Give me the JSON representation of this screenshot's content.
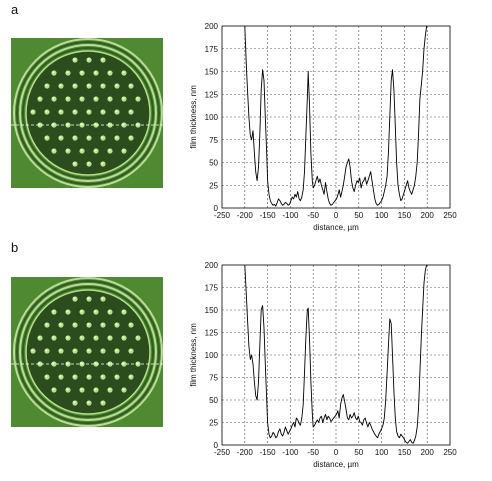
{
  "panels": [
    {
      "label": "a"
    },
    {
      "label": "b"
    }
  ],
  "colors": {
    "micro_bg": "#4f8a32",
    "micro_dark": "#2b4d1e",
    "micro_light": "#b4e08a",
    "micro_ring": "#d6f0b0",
    "line": "#000000",
    "grid": "#555555"
  },
  "chart_data": [
    {
      "type": "line",
      "xlabel": "distance, µm",
      "ylabel": "film thickness, nm",
      "xlim": [
        -250,
        250
      ],
      "ylim": [
        0,
        200
      ],
      "xticks": [
        "-250",
        "-200",
        "-150",
        "-100",
        "-50",
        "0",
        "50",
        "100",
        "150",
        "200",
        "250"
      ],
      "yticks": [
        "0",
        "25",
        "50",
        "75",
        "100",
        "125",
        "150",
        "175",
        "200"
      ],
      "grid": true,
      "series": [
        {
          "x": [
            -200,
            -197,
            -194,
            -191,
            -188,
            -185,
            -182,
            -179,
            -176,
            -173,
            -170,
            -167,
            -164,
            -161,
            -158,
            -155,
            -152,
            -150,
            -147,
            -144,
            -141,
            -138,
            -135,
            -132,
            -129,
            -126,
            -123,
            -120,
            -117,
            -114,
            -111,
            -108,
            -105,
            -102,
            -99,
            -96,
            -93,
            -90,
            -87,
            -84,
            -81,
            -78,
            -75,
            -72,
            -69,
            -66,
            -63,
            -61,
            -58,
            -55,
            -52,
            -50,
            -47,
            -44,
            -41,
            -38,
            -35,
            -32,
            -29,
            -26,
            -23,
            -20,
            -17,
            -14,
            -11,
            -8,
            -5,
            -2,
            1,
            4,
            7,
            10,
            13,
            16,
            19,
            22,
            25,
            28,
            31,
            34,
            37,
            40,
            43,
            46,
            49,
            52,
            55,
            58,
            61,
            64,
            67,
            70,
            73,
            76,
            79,
            82,
            85,
            88,
            91,
            94,
            97,
            100,
            103,
            106,
            109,
            112,
            115,
            118,
            121,
            124,
            127,
            130,
            133,
            136,
            139,
            142,
            145,
            148,
            151,
            154,
            157,
            160,
            163,
            166,
            169,
            172,
            175,
            178,
            181,
            184,
            187,
            190,
            193,
            196,
            199
          ],
          "y": [
            200,
            160,
            130,
            100,
            80,
            75,
            85,
            60,
            40,
            30,
            45,
            80,
            130,
            152,
            140,
            100,
            60,
            30,
            15,
            8,
            5,
            3,
            4,
            2,
            6,
            10,
            8,
            5,
            3,
            4,
            6,
            5,
            3,
            4,
            8,
            12,
            10,
            15,
            12,
            18,
            10,
            8,
            12,
            20,
            40,
            80,
            120,
            150,
            110,
            60,
            30,
            22,
            25,
            30,
            35,
            28,
            32,
            25,
            20,
            15,
            28,
            18,
            10,
            5,
            3,
            4,
            6,
            8,
            10,
            14,
            20,
            12,
            18,
            25,
            35,
            45,
            50,
            54,
            45,
            30,
            22,
            18,
            25,
            30,
            28,
            33,
            22,
            28,
            30,
            34,
            26,
            30,
            35,
            40,
            30,
            20,
            10,
            5,
            3,
            4,
            6,
            8,
            12,
            18,
            25,
            35,
            60,
            100,
            140,
            152,
            130,
            90,
            50,
            25,
            15,
            8,
            10,
            15,
            20,
            25,
            30,
            22,
            18,
            15,
            20,
            25,
            35,
            50,
            80,
            120,
            135,
            150,
            175,
            190,
            200
          ]
        }
      ]
    },
    {
      "type": "line",
      "xlabel": "distance, µm",
      "ylabel": "film thickness, nm",
      "xlim": [
        -250,
        250
      ],
      "ylim": [
        0,
        200
      ],
      "xticks": [
        "-250",
        "-200",
        "-150",
        "-100",
        "-50",
        "0",
        "50",
        "100",
        "150",
        "200",
        "250"
      ],
      "yticks": [
        "0",
        "25",
        "50",
        "75",
        "100",
        "125",
        "150",
        "175",
        "200"
      ],
      "grid": true,
      "series": [
        {
          "x": [
            -200,
            -197,
            -194,
            -191,
            -188,
            -185,
            -182,
            -179,
            -176,
            -173,
            -170,
            -167,
            -164,
            -161,
            -158,
            -155,
            -152,
            -150,
            -147,
            -144,
            -141,
            -138,
            -135,
            -132,
            -129,
            -126,
            -123,
            -120,
            -117,
            -114,
            -111,
            -108,
            -105,
            -102,
            -99,
            -96,
            -93,
            -90,
            -87,
            -84,
            -81,
            -78,
            -75,
            -72,
            -69,
            -66,
            -63,
            -61,
            -58,
            -55,
            -52,
            -50,
            -47,
            -44,
            -41,
            -38,
            -35,
            -32,
            -29,
            -26,
            -23,
            -20,
            -17,
            -14,
            -11,
            -8,
            -5,
            -2,
            1,
            4,
            7,
            10,
            13,
            16,
            19,
            22,
            25,
            28,
            31,
            34,
            37,
            40,
            43,
            46,
            49,
            52,
            55,
            58,
            61,
            64,
            67,
            70,
            73,
            76,
            79,
            82,
            85,
            88,
            91,
            94,
            97,
            100,
            103,
            106,
            109,
            112,
            115,
            118,
            121,
            124,
            127,
            130,
            133,
            136,
            139,
            142,
            145,
            148,
            151,
            154,
            157,
            160,
            163,
            166,
            169,
            172,
            175,
            178,
            181,
            184,
            187,
            190,
            193,
            196,
            199
          ],
          "y": [
            200,
            170,
            140,
            110,
            95,
            100,
            90,
            70,
            55,
            50,
            70,
            110,
            150,
            155,
            130,
            90,
            50,
            25,
            12,
            8,
            10,
            14,
            12,
            8,
            10,
            15,
            18,
            12,
            10,
            14,
            20,
            16,
            12,
            15,
            18,
            22,
            25,
            20,
            30,
            28,
            24,
            22,
            30,
            45,
            80,
            120,
            150,
            152,
            115,
            70,
            35,
            20,
            22,
            25,
            28,
            25,
            30,
            32,
            25,
            30,
            34,
            28,
            32,
            30,
            26,
            28,
            30,
            32,
            34,
            38,
            30,
            45,
            52,
            56,
            48,
            40,
            30,
            28,
            34,
            30,
            32,
            36,
            30,
            28,
            32,
            26,
            25,
            22,
            28,
            30,
            24,
            20,
            25,
            22,
            18,
            15,
            12,
            10,
            8,
            12,
            15,
            18,
            22,
            30,
            50,
            80,
            110,
            140,
            135,
            100,
            60,
            30,
            15,
            10,
            8,
            12,
            10,
            8,
            5,
            3,
            2,
            4,
            6,
            3,
            2,
            5,
            10,
            20,
            40,
            80,
            120,
            150,
            180,
            195,
            200
          ]
        }
      ]
    }
  ]
}
